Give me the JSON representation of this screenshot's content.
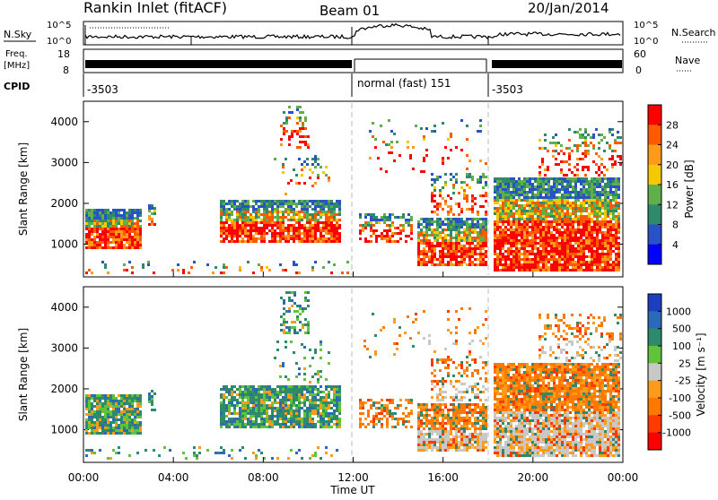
{
  "header": {
    "title": "Rankin Inlet (fitACF)",
    "beam": "Beam 01",
    "date": "20/Jan/2014"
  },
  "panels": {
    "nsky": {
      "label": "N.Sky",
      "ticks_left": [
        "10^5",
        "10^0"
      ],
      "ticks_right": [
        "10^5",
        "10^0"
      ],
      "right_label": "N.Search"
    },
    "freq": {
      "label_line1": "Freq.",
      "label_line2": "[MHz]",
      "ticks_left": [
        "18",
        "8"
      ],
      "ticks_right": [
        "60",
        "0"
      ],
      "right_label": "Nave"
    },
    "cpid": {
      "label": "CPID",
      "segments": [
        "-3503",
        "normal (fast) 151",
        "-3503"
      ]
    }
  },
  "chart_data": [
    {
      "type": "heatmap",
      "name": "power",
      "ylabel": "Slant Range [km]",
      "yticks": [
        "4000",
        "3000",
        "2000",
        "1000"
      ],
      "ylim": [
        200,
        4500
      ],
      "colorbar": {
        "label": "Power [dB]",
        "ticks": [
          "28",
          "24",
          "20",
          "16",
          "12",
          "8",
          "4"
        ],
        "colors": [
          "#ff0000",
          "#ff5a00",
          "#ff9a1a",
          "#f5c800",
          "#5fb04a",
          "#2e8a6a",
          "#2a52c8",
          "#0000ff"
        ]
      }
    },
    {
      "type": "heatmap",
      "name": "velocity",
      "ylabel": "Slant Range [km]",
      "yticks": [
        "4000",
        "3000",
        "2000",
        "1000"
      ],
      "ylim": [
        200,
        4500
      ],
      "colorbar": {
        "label": "Velocity [m s⁻¹]",
        "ticks": [
          "1000",
          "500",
          "100",
          "25",
          "-25",
          "-100",
          "-500",
          "-1000"
        ],
        "colors": [
          "#1d3fbf",
          "#2a6ab8",
          "#2e8a6a",
          "#5fc43c",
          "#c8c8c8",
          "#ff9a1a",
          "#ff7800",
          "#ff3a00",
          "#ff0000"
        ]
      }
    }
  ],
  "xaxis": {
    "label": "Time UT",
    "ticks": [
      "00:00",
      "04:00",
      "08:00",
      "12:00",
      "16:00",
      "20:00",
      "00:00"
    ]
  }
}
